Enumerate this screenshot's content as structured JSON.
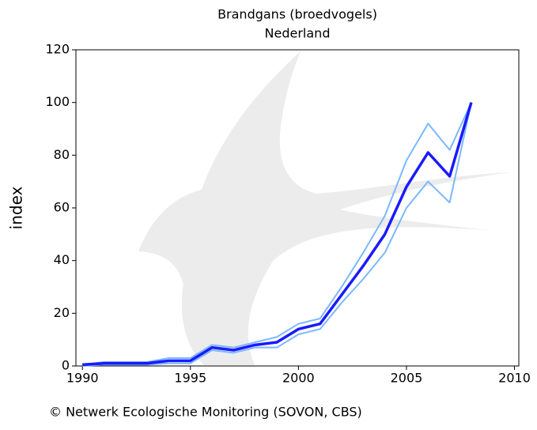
{
  "chart_data": {
    "type": "line",
    "title": "Brandgans (broedvogels)",
    "subtitle": "Nederland",
    "y_label": "index",
    "footer": "© Netwerk Ecologische Monitoring (SOVON, CBS)",
    "x": [
      1990,
      1991,
      1992,
      1993,
      1994,
      1995,
      1996,
      1997,
      1998,
      1999,
      2000,
      2001,
      2002,
      2003,
      2004,
      2005,
      2006,
      2007,
      2008
    ],
    "series": [
      {
        "color": "#7ab8ff",
        "width": 2,
        "values": [
          0.5,
          1.5,
          1.5,
          1.5,
          3,
          3,
          8,
          7,
          9,
          11,
          16,
          18,
          30,
          43,
          57,
          78,
          92,
          82,
          100
        ]
      },
      {
        "color": "#7ab8ff",
        "width": 2,
        "values": [
          0,
          0.5,
          0.5,
          0.5,
          1,
          1,
          6,
          5,
          7,
          7,
          12,
          14,
          24,
          33,
          43,
          60,
          70,
          62,
          100
        ]
      },
      {
        "color": "#1a1aff",
        "width": 3.5,
        "values": [
          0.5,
          1,
          1,
          1,
          2,
          2,
          7,
          6,
          8,
          9,
          14,
          16,
          27,
          38,
          50,
          68,
          81,
          72,
          100
        ]
      }
    ],
    "xlim": [
      1989.7,
      2010.2
    ],
    "xticks": [
      1990,
      1995,
      2000,
      2005,
      2010
    ],
    "ylim": [
      0,
      120
    ],
    "yticks": [
      0,
      20,
      40,
      60,
      80,
      100,
      120
    ],
    "grid": false
  }
}
